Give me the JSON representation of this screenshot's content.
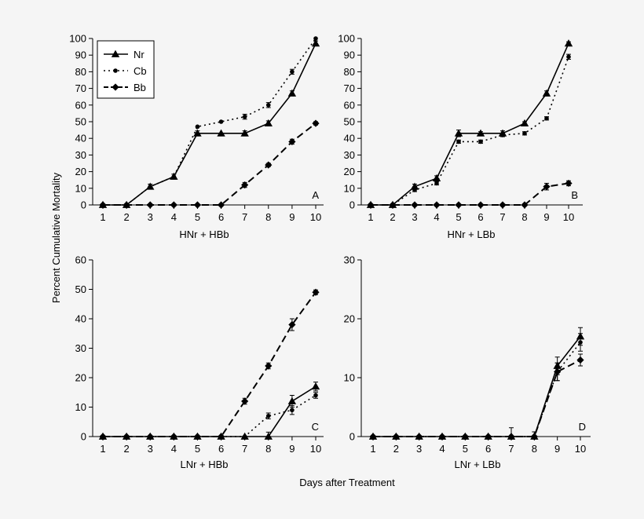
{
  "figure": {
    "ylabel": "Percent Cumulative Mortality",
    "xlabel": "Days after Treatment"
  },
  "legend": [
    {
      "name": "Nr",
      "marker": "triangle",
      "dash": "solid"
    },
    {
      "name": "Cb",
      "marker": "circle",
      "dash": "dotted"
    },
    {
      "name": "Bb",
      "marker": "diamond",
      "dash": "dashed"
    }
  ],
  "chart_data": [
    {
      "type": "line",
      "panel": "A",
      "xlabel": "HNr + HBb",
      "ylim": [
        0,
        100
      ],
      "yticks": [
        0,
        10,
        20,
        30,
        40,
        50,
        60,
        70,
        80,
        90,
        100
      ],
      "x": [
        1,
        2,
        3,
        4,
        5,
        6,
        7,
        8,
        9,
        10
      ],
      "series": [
        {
          "name": "Nr",
          "values": [
            0,
            0,
            11,
            17,
            43,
            43,
            43,
            49,
            67,
            97
          ],
          "err": [
            0,
            0,
            1.5,
            1.5,
            1.5,
            0,
            1.5,
            1.5,
            1.5,
            1.5
          ]
        },
        {
          "name": "Cb",
          "values": [
            0,
            0,
            11,
            17,
            47,
            50,
            53,
            60,
            80,
            100
          ],
          "err": [
            0,
            0,
            0,
            0,
            0,
            0,
            1.5,
            1.5,
            1.5,
            0
          ]
        },
        {
          "name": "Bb",
          "values": [
            0,
            0,
            0,
            0,
            0,
            0,
            12,
            24,
            38,
            49
          ],
          "err": [
            0,
            0,
            0,
            0,
            0,
            0,
            1.5,
            1,
            1.5,
            1
          ]
        }
      ]
    },
    {
      "type": "line",
      "panel": "B",
      "xlabel": "HNr + LBb",
      "ylim": [
        0,
        100
      ],
      "yticks": [
        0,
        10,
        20,
        30,
        40,
        50,
        60,
        70,
        80,
        90,
        100
      ],
      "x": [
        1,
        2,
        3,
        4,
        5,
        6,
        7,
        8,
        9,
        10
      ],
      "series": [
        {
          "name": "Nr",
          "values": [
            0,
            0,
            11,
            16,
            43,
            43,
            43,
            49,
            67,
            97
          ],
          "err": [
            0,
            0,
            1.5,
            1.5,
            2,
            1,
            1.5,
            1,
            1.5,
            1
          ]
        },
        {
          "name": "Cb",
          "values": [
            0,
            0,
            9,
            13,
            38,
            38,
            42,
            43,
            52,
            89
          ],
          "err": [
            0,
            0,
            1,
            1,
            1,
            1,
            1,
            1,
            1,
            1.5
          ]
        },
        {
          "name": "Bb",
          "values": [
            0,
            0,
            0,
            0,
            0,
            0,
            0,
            0,
            11,
            13
          ],
          "err": [
            0,
            0,
            0,
            0,
            0,
            0,
            0,
            0,
            2,
            1.5
          ]
        }
      ]
    },
    {
      "type": "line",
      "panel": "C",
      "xlabel": "LNr + HBb",
      "ylim": [
        0,
        60
      ],
      "yticks": [
        0,
        10,
        20,
        30,
        40,
        50,
        60
      ],
      "x": [
        1,
        2,
        3,
        4,
        5,
        6,
        7,
        8,
        9,
        10
      ],
      "series": [
        {
          "name": "Nr",
          "values": [
            0,
            0,
            0,
            0,
            0,
            0,
            0,
            0,
            12,
            17
          ],
          "err": [
            0,
            0,
            0,
            0,
            0,
            0,
            0,
            1.5,
            2,
            1.5
          ]
        },
        {
          "name": "Cb",
          "values": [
            0,
            0,
            0,
            0,
            0,
            0,
            0,
            7,
            9,
            14
          ],
          "err": [
            0,
            0,
            0,
            0,
            0,
            0,
            0,
            1,
            1.5,
            1
          ]
        },
        {
          "name": "Bb",
          "values": [
            0,
            0,
            0,
            0,
            0,
            0,
            12,
            24,
            38,
            49
          ],
          "err": [
            0,
            0,
            0,
            0,
            0,
            0,
            1,
            1,
            2,
            0.8
          ]
        }
      ]
    },
    {
      "type": "line",
      "panel": "D",
      "xlabel": "LNr + LBb",
      "ylim": [
        0,
        30
      ],
      "yticks": [
        0,
        10,
        20,
        30
      ],
      "x": [
        1,
        2,
        3,
        4,
        5,
        6,
        7,
        8,
        9,
        10
      ],
      "series": [
        {
          "name": "Nr",
          "values": [
            0,
            0,
            0,
            0,
            0,
            0,
            0,
            0,
            12,
            17
          ],
          "err": [
            0,
            0,
            0,
            0,
            0,
            0,
            1.5,
            0.8,
            1.5,
            1.5
          ]
        },
        {
          "name": "Cb",
          "values": [
            0,
            0,
            0,
            0,
            0,
            0,
            0,
            0,
            11,
            16
          ],
          "err": [
            0,
            0,
            0,
            0,
            0,
            0,
            0,
            0,
            1.5,
            1.5
          ]
        },
        {
          "name": "Bb",
          "values": [
            0,
            0,
            0,
            0,
            0,
            0,
            0,
            0,
            11,
            13
          ],
          "err": [
            0,
            0,
            0,
            0,
            0,
            0,
            0,
            0,
            1.5,
            1
          ]
        }
      ]
    }
  ]
}
